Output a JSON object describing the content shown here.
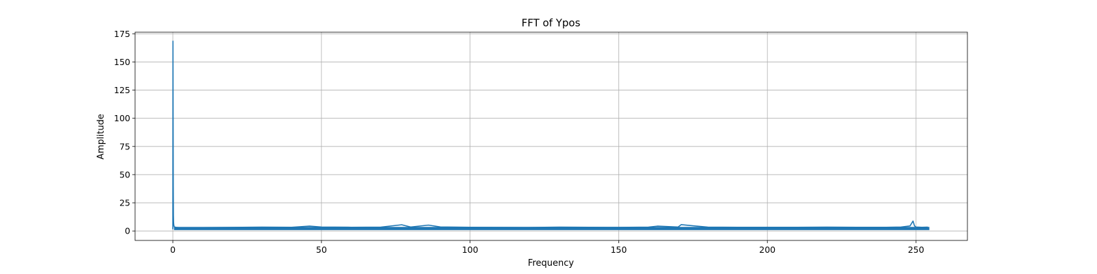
{
  "chart_data": {
    "type": "line",
    "title": "FFT of Ypos",
    "xlabel": "Frequency",
    "ylabel": "Amplitude",
    "xlim": [
      -12.7,
      267.3
    ],
    "ylim": [
      -8.4,
      176.4
    ],
    "x_ticks": [
      0,
      50,
      100,
      150,
      200,
      250
    ],
    "y_ticks": [
      0,
      25,
      50,
      75,
      100,
      125,
      150,
      175
    ],
    "grid": true,
    "legend": "none",
    "series_color": "#1f77b4",
    "series": [
      {
        "x": [
          0,
          0.05,
          0.1,
          0.15,
          0.2,
          0.25,
          0.3,
          0.35,
          0.4,
          0.5,
          0.7,
          1,
          2,
          5,
          10,
          20,
          30,
          40,
          46,
          50,
          60,
          70,
          77,
          80,
          86,
          90,
          100,
          110,
          120,
          130,
          140,
          150,
          160,
          163,
          170,
          171,
          180,
          190,
          200,
          210,
          220,
          230,
          240,
          245,
          248,
          249,
          249.5,
          250,
          252,
          254
        ],
        "y": [
          1.5,
          168.5,
          100,
          40,
          14,
          8,
          6,
          5,
          4.5,
          3.5,
          3.5,
          3.2,
          3,
          3,
          3,
          3.2,
          3.4,
          3.3,
          4.3,
          3.5,
          3.3,
          3.4,
          5.5,
          3.5,
          5.2,
          3.6,
          3.3,
          3.2,
          3.1,
          3.4,
          3.3,
          3.2,
          3.4,
          4.3,
          3.5,
          5.6,
          3.4,
          3.3,
          3.3,
          3.3,
          3.4,
          3.3,
          3.3,
          3.5,
          4.5,
          8.8,
          4.5,
          3.5,
          3.3,
          3.4
        ],
        "noise_floor": {
          "x_range": [
            0.4,
            254.5
          ],
          "low": 0.8,
          "high": 3.6
        }
      }
    ]
  }
}
